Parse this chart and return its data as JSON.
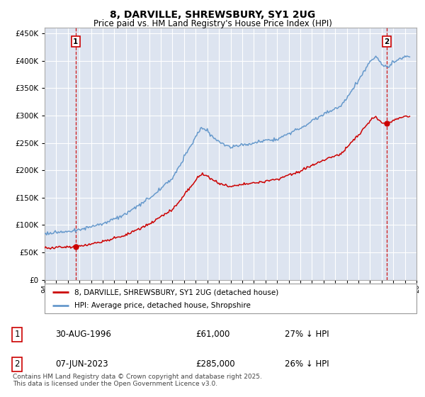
{
  "title": "8, DARVILLE, SHREWSBURY, SY1 2UG",
  "subtitle": "Price paid vs. HM Land Registry's House Price Index (HPI)",
  "sale1": {
    "date": "30-AUG-1996",
    "price": 61000,
    "label": "1",
    "year": 1996.67
  },
  "sale2": {
    "date": "07-JUN-2023",
    "price": 285000,
    "label": "2",
    "year": 2023.44
  },
  "legend1": "8, DARVILLE, SHREWSBURY, SY1 2UG (detached house)",
  "legend2": "HPI: Average price, detached house, Shropshire",
  "table1": [
    "1",
    "30-AUG-1996",
    "£61,000",
    "27% ↓ HPI"
  ],
  "table2": [
    "2",
    "07-JUN-2023",
    "£285,000",
    "26% ↓ HPI"
  ],
  "footnote": "Contains HM Land Registry data © Crown copyright and database right 2025.\nThis data is licensed under the Open Government Licence v3.0.",
  "line_color_red": "#cc0000",
  "line_color_blue": "#6699cc",
  "bg_color": "#dde4f0",
  "grid_color": "#ffffff",
  "ylim": [
    0,
    460000
  ],
  "xlim_start": 1994,
  "xlim_end": 2026
}
